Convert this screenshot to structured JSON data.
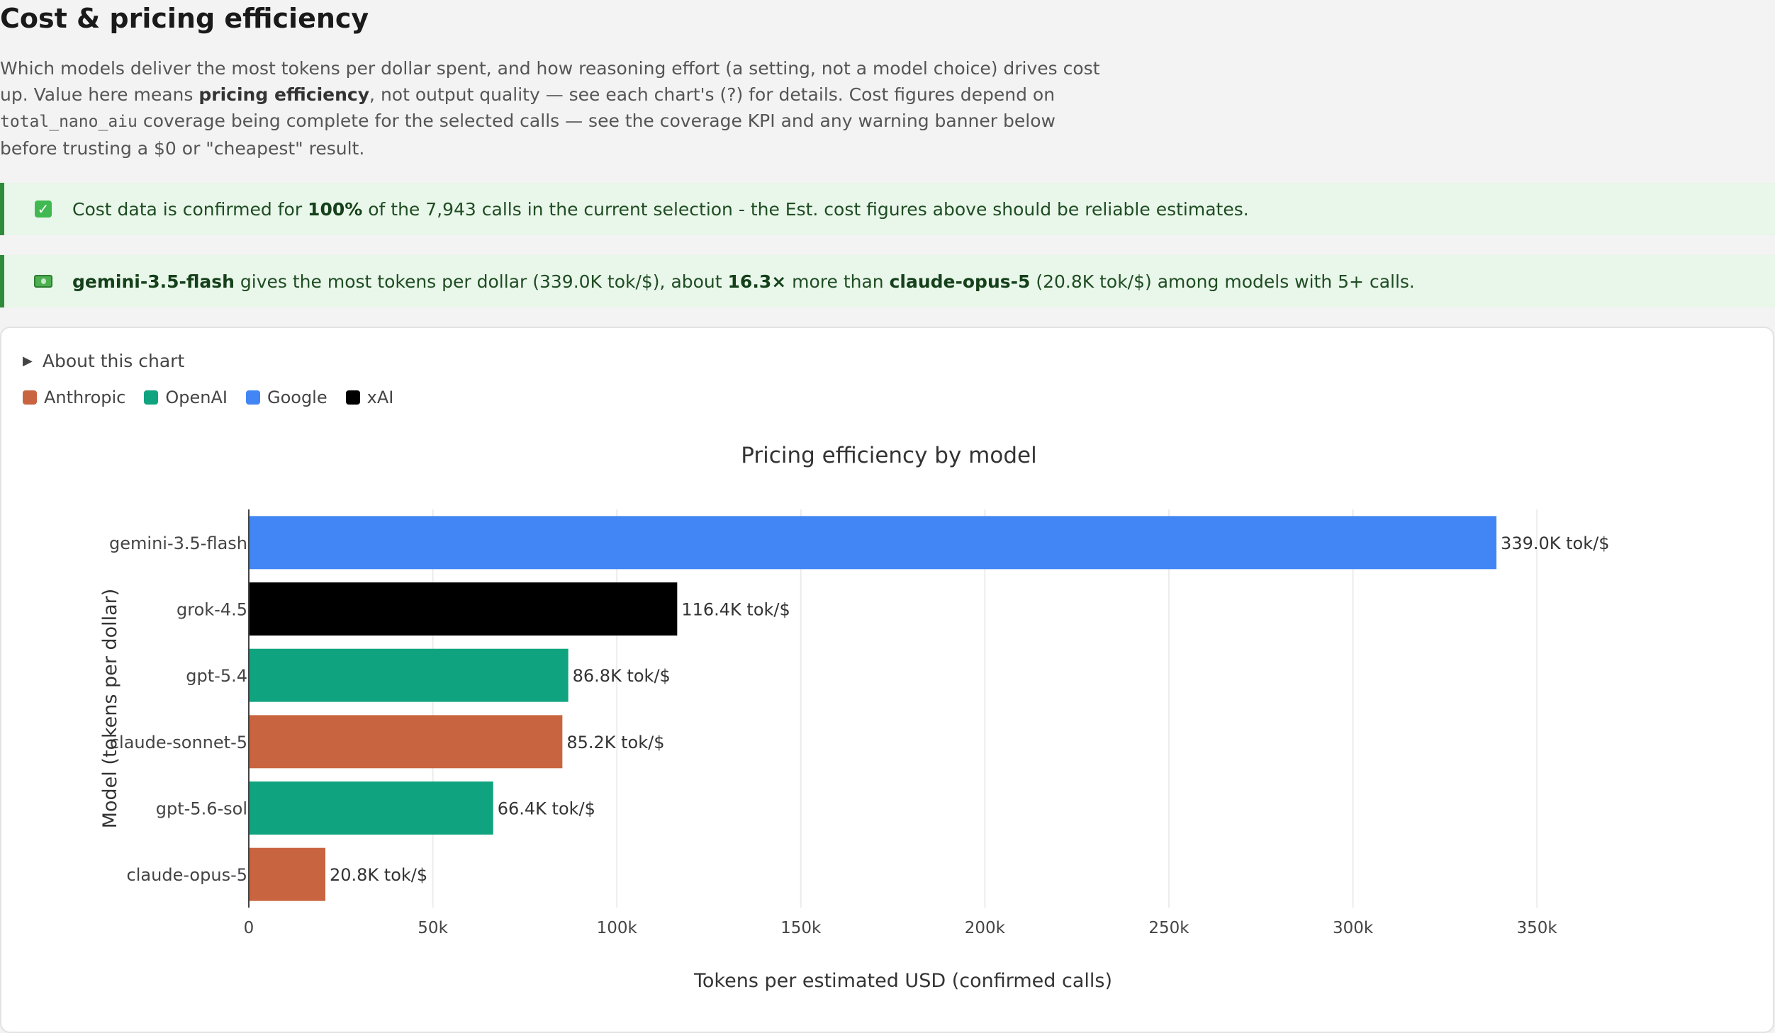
{
  "section": {
    "title": "Cost & pricing efficiency",
    "desc_part1": "Which models deliver the most tokens per dollar spent, and how reasoning effort (a setting, not a model choice) drives cost up. Value here means ",
    "desc_bold": "pricing efficiency",
    "desc_part2": ", not output quality — see each chart's (?) for details. Cost figures depend on ",
    "desc_code": "total_nano_aiu",
    "desc_part3": " coverage being complete for the selected calls — see the coverage KPI and any warning banner below before trusting a $0 or \"cheapest\" result."
  },
  "coverage_banner": {
    "icon": "check-icon",
    "text_before": "Cost data is confirmed for ",
    "percent": "100%",
    "text_after": " of the 7,943 calls in the current selection - the Est. cost figures above should be reliable estimates."
  },
  "insight_banner": {
    "icon": "money-icon",
    "model_best": "gemini-3.5-flash",
    "text_1": " gives the most tokens per dollar (339.0K tok/$), about ",
    "ratio": "16.3×",
    "text_2": " more than ",
    "model_worst": "claude-opus-5",
    "text_3": " (20.8K tok/$) among models with 5+ calls."
  },
  "card": {
    "about_label": "About this chart",
    "legend": [
      {
        "label": "Anthropic",
        "color": "#c8643f"
      },
      {
        "label": "OpenAI",
        "color": "#10a37f"
      },
      {
        "label": "Google",
        "color": "#4285f4"
      },
      {
        "label": "xAI",
        "color": "#000000"
      }
    ]
  },
  "chart_data": {
    "type": "bar",
    "orientation": "horizontal",
    "title": "Pricing efficiency by model",
    "xlabel": "Tokens per estimated USD (confirmed calls)",
    "ylabel": "Model (tokens per dollar)",
    "xlim": [
      0,
      370000
    ],
    "xticks": [
      0,
      50000,
      100000,
      150000,
      200000,
      250000,
      300000,
      350000
    ],
    "xtick_labels": [
      "0",
      "50k",
      "100k",
      "150k",
      "200k",
      "250k",
      "300k",
      "350k"
    ],
    "grid": true,
    "categories": [
      "gemini-3.5-flash",
      "grok-4.5",
      "gpt-5.4",
      "claude-sonnet-5",
      "gpt-5.6-sol",
      "claude-opus-5"
    ],
    "values": [
      339000,
      116400,
      86800,
      85200,
      66400,
      20800
    ],
    "labels": [
      "339.0K tok/$",
      "116.4K tok/$",
      "86.8K tok/$",
      "85.2K tok/$",
      "66.4K tok/$",
      "20.8K tok/$"
    ],
    "colors": [
      "#4285f4",
      "#000000",
      "#10a37f",
      "#c8643f",
      "#10a37f",
      "#c8643f"
    ]
  }
}
